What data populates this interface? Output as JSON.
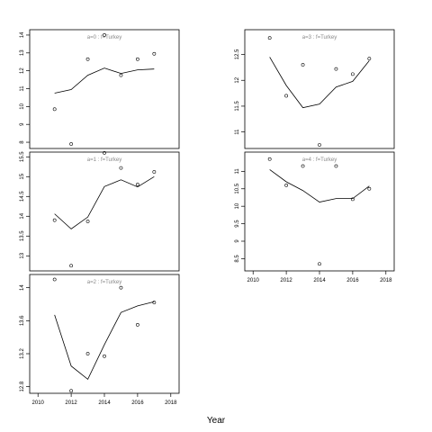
{
  "chart_data": [
    {
      "type": "scatter",
      "title": "a=0 : f=Turkey",
      "x": [
        2011,
        2012,
        2013,
        2014,
        2015,
        2016,
        2017
      ],
      "points": [
        9.85,
        7.9,
        12.65,
        14.0,
        11.75,
        12.65,
        12.95
      ],
      "line": [
        10.75,
        10.95,
        11.75,
        12.15,
        11.85,
        12.05,
        12.1
      ],
      "xlim": [
        2009.5,
        2018.5
      ],
      "ylim": [
        7.65,
        14.3
      ],
      "yticks": [
        8,
        9,
        10,
        11,
        12,
        13,
        14
      ]
    },
    {
      "type": "scatter",
      "title": "a=3 : f=Turkey",
      "x": [
        2011,
        2012,
        2013,
        2014,
        2015,
        2016,
        2017
      ],
      "points": [
        12.82,
        11.7,
        12.3,
        10.75,
        12.22,
        12.12,
        12.42
      ],
      "line": [
        12.45,
        11.9,
        11.47,
        11.54,
        11.87,
        11.98,
        12.38
      ],
      "xlim": [
        2009.5,
        2018.5
      ],
      "ylim": [
        10.68,
        12.98
      ],
      "yticks": [
        11.0,
        11.5,
        12.0,
        12.5
      ]
    },
    {
      "type": "scatter",
      "title": "a=1 : f=Turkey",
      "x": [
        2011,
        2012,
        2013,
        2014,
        2015,
        2016,
        2017
      ],
      "points": [
        13.9,
        12.75,
        13.87,
        15.6,
        15.22,
        14.8,
        15.12
      ],
      "line": [
        14.06,
        13.68,
        13.98,
        14.75,
        14.92,
        14.74,
        15.0
      ],
      "xlim": [
        2009.5,
        2018.5
      ],
      "ylim": [
        12.62,
        15.62
      ],
      "yticks": [
        13.0,
        13.5,
        14.0,
        14.5,
        15.0,
        15.5
      ]
    },
    {
      "type": "scatter",
      "title": "a=4 : f=Turkey",
      "x": [
        2011,
        2012,
        2013,
        2014,
        2015,
        2016,
        2017
      ],
      "points": [
        11.35,
        10.6,
        11.15,
        8.35,
        11.15,
        10.2,
        10.5
      ],
      "line": [
        11.05,
        10.7,
        10.45,
        10.12,
        10.22,
        10.22,
        10.58
      ],
      "xlim": [
        2009.5,
        2018.5
      ],
      "ylim": [
        8.15,
        11.55
      ],
      "yticks": [
        8.5,
        9.0,
        9.5,
        10.0,
        10.5,
        11.0
      ]
    },
    {
      "type": "scatter",
      "title": "a=2 : f=Turkey",
      "x": [
        2011,
        2012,
        2013,
        2014,
        2015,
        2016,
        2017
      ],
      "points": [
        14.1,
        12.75,
        13.2,
        13.17,
        14.0,
        13.55,
        13.82
      ],
      "line": [
        13.67,
        13.05,
        12.89,
        13.31,
        13.7,
        13.78,
        13.83
      ],
      "xlim": [
        2009.5,
        2018.5
      ],
      "ylim": [
        12.72,
        14.16
      ],
      "yticks": [
        12.8,
        13.2,
        13.6,
        14.0
      ]
    }
  ],
  "x_axis": {
    "label": "Year",
    "ticks": [
      2010,
      2012,
      2014,
      2016,
      2018
    ]
  }
}
